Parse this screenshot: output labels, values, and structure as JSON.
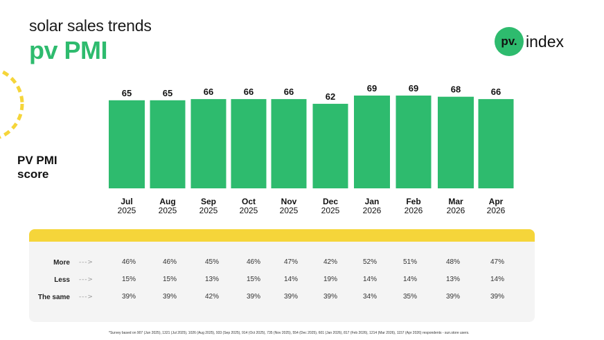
{
  "header": {
    "subtitle": "solar sales trends",
    "title": "pv PMI"
  },
  "logo": {
    "mark": "pv.",
    "text": "index"
  },
  "y_axis_label": "PV PMI\nscore",
  "colors": {
    "bar": "#2ebb6e",
    "accent": "#f5d53a",
    "panel": "#f4f4f4"
  },
  "chart_data": {
    "type": "bar",
    "categories": [
      "Jul 2025",
      "Aug 2025",
      "Sep 2025",
      "Oct 2025",
      "Nov 2025",
      "Dec 2025",
      "Jan 2026",
      "Feb 2026",
      "Mar 2026",
      "Apr 2026"
    ],
    "category_lines": [
      [
        "Jul",
        "2025"
      ],
      [
        "Aug",
        "2025"
      ],
      [
        "Sep",
        "2025"
      ],
      [
        "Oct",
        "2025"
      ],
      [
        "Nov",
        "2025"
      ],
      [
        "Dec",
        "2025"
      ],
      [
        "Jan",
        "2026"
      ],
      [
        "Feb",
        "2026"
      ],
      [
        "Mar",
        "2026"
      ],
      [
        "Apr",
        "2026"
      ]
    ],
    "values": [
      65,
      65,
      66,
      66,
      66,
      62,
      69,
      69,
      68,
      66
    ],
    "ylabel": "PV PMI score",
    "data_labels": true,
    "grid": false
  },
  "table": {
    "rows": [
      {
        "label": "More",
        "arrow": "- - - >",
        "values": [
          "46%",
          "46%",
          "45%",
          "46%",
          "47%",
          "42%",
          "52%",
          "51%",
          "48%",
          "47%"
        ]
      },
      {
        "label": "Less",
        "arrow": "- - - >",
        "values": [
          "15%",
          "15%",
          "13%",
          "15%",
          "14%",
          "19%",
          "14%",
          "14%",
          "13%",
          "14%"
        ]
      },
      {
        "label": "The same",
        "arrow": "- - - >",
        "values": [
          "39%",
          "39%",
          "42%",
          "39%",
          "39%",
          "39%",
          "34%",
          "35%",
          "39%",
          "39%"
        ]
      }
    ]
  },
  "footnote": "*Survey based on 907 (Jun 2025), 1321 (Jul 2025), 1026 (Aug 2025), 933 (Sep 2025), 914 (Oct 2025), 735 (Nov 2025), 554 (Dec 2025), 601 (Jan 2026), 817 (Feb 2026), 1214 (Mar 2026), 1157 (Apr 2026) respondents - sun.store users."
}
